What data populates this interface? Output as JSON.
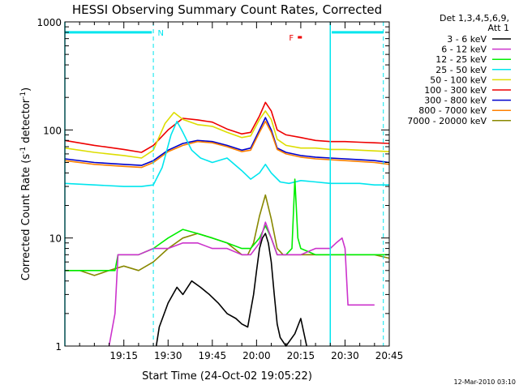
{
  "chart_data": {
    "type": "line",
    "title": "HESSI Observing Summary Count Rates, Corrected",
    "xlabel": "Start Time (24-Oct-02 19:05:22)",
    "ylabel_main": "Corrected Count Rate (s",
    "ylabel_sup1": "-1",
    "ylabel_mid": " detector",
    "ylabel_sup2": "-1",
    "ylabel_end": ")",
    "yscale": "log",
    "ylim": [
      1,
      1000
    ],
    "xlim_min": [
      -10,
      100
    ],
    "x_ticks": [
      {
        "m": 10,
        "label": "19:15"
      },
      {
        "m": 25,
        "label": "19:30"
      },
      {
        "m": 40,
        "label": "19:45"
      },
      {
        "m": 55,
        "label": "20:00"
      },
      {
        "m": 70,
        "label": "20:15"
      },
      {
        "m": 85,
        "label": "20:30"
      },
      {
        "m": 100,
        "label": "20:45"
      }
    ],
    "y_ticks": [
      {
        "v": 1,
        "label": "1"
      },
      {
        "v": 10,
        "label": "10"
      },
      {
        "v": 100,
        "label": "100"
      },
      {
        "v": 1000,
        "label": "1000"
      }
    ],
    "legend": {
      "position": "right",
      "header1": "Det 1,3,4,5,6,9,",
      "header2": "Att 1",
      "entries": [
        {
          "label": "3 - 6 keV",
          "color": "#000000"
        },
        {
          "label": "6 - 12 keV",
          "color": "#cc33cc"
        },
        {
          "label": "12 - 25 keV",
          "color": "#00ee00"
        },
        {
          "label": "25 - 50 keV",
          "color": "#00e5ee"
        },
        {
          "label": "50 - 100 keV",
          "color": "#dddd00"
        },
        {
          "label": "100 - 300 keV",
          "color": "#ee0000"
        },
        {
          "label": "300 - 800 keV",
          "color": "#0000cc"
        },
        {
          "label": "800 - 7000 keV",
          "color": "#ff8000"
        },
        {
          "label": "7000 - 20000 keV",
          "color": "#888800"
        }
      ]
    },
    "annotations": {
      "n_label": "N",
      "f_label": "F",
      "f_color": "#ee0000",
      "marker_color": "#00e5ee"
    },
    "series": [
      {
        "name": "100 - 300 keV",
        "color": "#ee0000",
        "x": [
          -10,
          0,
          10,
          16,
          20,
          25,
          30,
          35,
          40,
          45,
          50,
          53,
          56,
          58,
          60,
          62,
          65,
          70,
          75,
          80,
          85,
          90,
          95,
          100
        ],
        "y": [
          80,
          72,
          66,
          62,
          72,
          100,
          128,
          124,
          118,
          102,
          92,
          95,
          135,
          180,
          150,
          100,
          90,
          85,
          80,
          78,
          78,
          77,
          76,
          75
        ]
      },
      {
        "name": "50 - 100 keV",
        "color": "#dddd00",
        "x": [
          -10,
          0,
          10,
          16,
          20,
          24,
          27,
          30,
          35,
          40,
          45,
          50,
          53,
          56,
          58,
          60,
          62,
          65,
          70,
          75,
          80,
          85,
          90,
          95,
          100
        ],
        "y": [
          68,
          62,
          58,
          55,
          65,
          115,
          145,
          125,
          112,
          108,
          95,
          85,
          88,
          125,
          150,
          125,
          82,
          72,
          68,
          68,
          66,
          66,
          65,
          64,
          63
        ]
      },
      {
        "name": "300 - 800 keV",
        "color": "#0000cc",
        "x": [
          -10,
          0,
          10,
          16,
          20,
          25,
          30,
          35,
          40,
          45,
          50,
          53,
          56,
          58,
          60,
          62,
          65,
          70,
          75,
          80,
          85,
          90,
          95,
          100
        ],
        "y": [
          54,
          50,
          48,
          47,
          52,
          65,
          75,
          80,
          78,
          72,
          65,
          68,
          100,
          130,
          100,
          68,
          62,
          58,
          56,
          55,
          54,
          53,
          52,
          50
        ]
      },
      {
        "name": "800 - 7000 keV",
        "color": "#ff8000",
        "x": [
          -10,
          0,
          10,
          16,
          20,
          25,
          30,
          35,
          40,
          45,
          50,
          53,
          56,
          58,
          60,
          62,
          65,
          70,
          75,
          80,
          85,
          90,
          95,
          100
        ],
        "y": [
          52,
          48,
          46,
          45,
          50,
          63,
          72,
          78,
          76,
          70,
          63,
          65,
          95,
          120,
          95,
          66,
          60,
          56,
          54,
          53,
          52,
          51,
          50,
          48
        ]
      },
      {
        "name": "25 - 50 keV",
        "color": "#00e5ee",
        "x": [
          -10,
          0,
          10,
          16,
          20,
          23,
          26,
          28,
          30,
          33,
          36,
          40,
          45,
          50,
          53,
          56,
          58,
          60,
          63,
          66,
          70,
          75,
          80,
          85,
          90,
          95,
          100
        ],
        "y": [
          32,
          31,
          30,
          30,
          31,
          45,
          90,
          120,
          95,
          65,
          55,
          50,
          55,
          42,
          35,
          40,
          48,
          40,
          33,
          32,
          34,
          33,
          32,
          32,
          32,
          31,
          31
        ]
      },
      {
        "name": "7000 - 20000 keV",
        "color": "#888800",
        "x": [
          -10,
          -5,
          0,
          5,
          10,
          15,
          20,
          25,
          30,
          35,
          40,
          45,
          50,
          52,
          54,
          56,
          58,
          60,
          62,
          64,
          66,
          70,
          75,
          80,
          85,
          90,
          95,
          100
        ],
        "y": [
          5,
          5,
          4.5,
          5,
          5.5,
          5,
          6,
          8,
          10,
          11,
          10,
          9,
          7,
          7,
          9,
          16,
          25,
          15,
          8,
          7,
          7,
          7,
          7,
          7,
          7,
          7,
          7,
          6.5
        ]
      },
      {
        "name": "12 - 25 keV",
        "color": "#00ee00",
        "x": [
          -10,
          0,
          7,
          8,
          15,
          20,
          25,
          30,
          35,
          40,
          45,
          50,
          53,
          56,
          58,
          60,
          62,
          65,
          67,
          68,
          69,
          70,
          75,
          80,
          85,
          90,
          95,
          100
        ],
        "y": [
          5,
          5,
          5,
          7,
          7,
          8,
          10,
          12,
          11,
          10,
          9,
          8,
          8,
          10,
          13,
          10,
          7,
          7,
          8,
          35,
          10,
          8,
          7,
          7,
          7,
          7,
          7,
          7
        ]
      },
      {
        "name": "6 - 12 keV",
        "color": "#cc33cc",
        "x": [
          5,
          7,
          8,
          15,
          20,
          25,
          30,
          35,
          40,
          45,
          50,
          53,
          56,
          58,
          60,
          62,
          65,
          70,
          75,
          80,
          82,
          84,
          85,
          86,
          90,
          95
        ],
        "y": [
          1,
          2,
          7,
          7,
          8,
          8,
          9,
          9,
          8,
          8,
          7,
          7,
          9,
          14,
          10,
          7,
          7,
          7,
          8,
          8,
          9,
          10,
          8,
          2.4,
          2.4,
          2.4
        ]
      },
      {
        "name": "3 - 6 keV",
        "color": "#000000",
        "x": [
          21,
          22,
          25,
          28,
          30,
          33,
          36,
          39,
          42,
          45,
          48,
          50,
          52,
          54,
          55,
          56,
          57,
          58,
          59,
          60,
          61,
          62,
          63,
          65,
          68,
          70,
          72
        ],
        "y": [
          1,
          1.5,
          2.5,
          3.5,
          3,
          4,
          3.5,
          3,
          2.5,
          2,
          1.8,
          1.6,
          1.5,
          3,
          5,
          8,
          10,
          11,
          9,
          6,
          3,
          1.6,
          1.2,
          1,
          1.3,
          1.8,
          1
        ]
      }
    ]
  },
  "footer": {
    "timestamp": "12-Mar-2010 03:10"
  }
}
